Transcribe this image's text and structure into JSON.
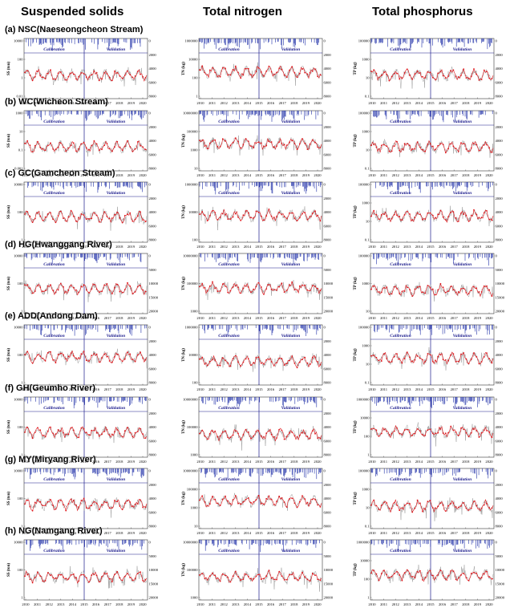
{
  "columns": [
    "Suspended solids",
    "Total nitrogen",
    "Total phosphorus"
  ],
  "rows": [
    "(a) NSC(Naeseongcheon Stream)",
    "(b) WC(Wicheon Stream)",
    "(c) GC(Gamcheon Stream)",
    "(d) HG(Hwanggang River)",
    "(e) ADD(Andong Dam)",
    "(f) GH(Geumho River)",
    "(g) MY(Miryang River)",
    "(h) NG(Namgang River)"
  ],
  "chart_data": {
    "type": "line",
    "layout": "grid of 8 sites x 3 constituents",
    "x_tick_labels": [
      "2010",
      "2011",
      "2012",
      "2013",
      "2014",
      "2015",
      "2016",
      "2017",
      "2018",
      "2019",
      "2020"
    ],
    "phase_labels": [
      "Calibration",
      "Validation"
    ],
    "split_year": "2015",
    "series_colors": {
      "observed": "#e0161b",
      "simulated": "#9a9a9a",
      "precipitation": "#1f2fa8"
    },
    "y_axis_scale": "log",
    "panels": [
      {
        "site": "NSC",
        "column": 0,
        "ylabel": "SS (ton)",
        "yticks": [
          "10000",
          "100",
          "1",
          "0.01"
        ],
        "y2ticks": [
          "0",
          "2000",
          "4000",
          "6000",
          "8000"
        ]
      },
      {
        "site": "NSC",
        "column": 1,
        "ylabel": "TN (kg)",
        "yticks": [
          "1000000",
          "10000",
          "100",
          "1"
        ],
        "y2ticks": [
          "0",
          "2000",
          "4000",
          "6000",
          "8000"
        ]
      },
      {
        "site": "NSC",
        "column": 2,
        "ylabel": "TP (kg)",
        "yticks": [
          "100000",
          "1000",
          "10",
          "0.1"
        ],
        "y2ticks": [
          "0",
          "2000",
          "4000",
          "6000",
          "8000"
        ]
      },
      {
        "site": "WC",
        "column": 0,
        "ylabel": "SS (ton)",
        "yticks": [
          "1000",
          "10",
          "0.1",
          "0.001"
        ],
        "y2ticks": [
          "0",
          "2000",
          "4000",
          "6000",
          "8000"
        ]
      },
      {
        "site": "WC",
        "column": 1,
        "ylabel": "TN (kg)",
        "yticks": [
          "10000000",
          "100000",
          "1000",
          "10"
        ],
        "y2ticks": [
          "0",
          "2000",
          "4000",
          "6000",
          "8000"
        ]
      },
      {
        "site": "WC",
        "column": 2,
        "ylabel": "TP (kg)",
        "yticks": [
          "100000",
          "1000",
          "10",
          "0.1"
        ],
        "y2ticks": [
          "0",
          "2000",
          "4000",
          "6000",
          "8000"
        ]
      },
      {
        "site": "GC",
        "column": 0,
        "ylabel": "SS (ton)",
        "yticks": [
          "10000",
          "100",
          "1"
        ],
        "y2ticks": [
          "0",
          "2000",
          "4000",
          "6000",
          "8000"
        ]
      },
      {
        "site": "GC",
        "column": 1,
        "ylabel": "TN (kg)",
        "yticks": [
          "1000000",
          "10000",
          "100"
        ],
        "y2ticks": [
          "0",
          "2000",
          "4000",
          "6000",
          "8000"
        ]
      },
      {
        "site": "GC",
        "column": 2,
        "ylabel": "TP (kg)",
        "yticks": [
          "100000",
          "1000",
          "10",
          "0.1"
        ],
        "y2ticks": [
          "0",
          "2000",
          "4000",
          "6000",
          "8000"
        ]
      },
      {
        "site": "HG",
        "column": 0,
        "ylabel": "SS (ton)",
        "yticks": [
          "10000",
          "100",
          "1"
        ],
        "y2ticks": [
          "0",
          "5000",
          "10000",
          "15000",
          "20000"
        ]
      },
      {
        "site": "HG",
        "column": 1,
        "ylabel": "TN (kg)",
        "yticks": [
          "10000000",
          "100000",
          "1000"
        ],
        "y2ticks": [
          "0",
          "5000",
          "10000",
          "15000",
          "20000"
        ]
      },
      {
        "site": "HG",
        "column": 2,
        "ylabel": "TP (kg)",
        "yticks": [
          "100000",
          "1000",
          "10"
        ],
        "y2ticks": [
          "0",
          "5000",
          "10000",
          "15000",
          "20000"
        ]
      },
      {
        "site": "ADD",
        "column": 0,
        "ylabel": "SS (ton)",
        "yticks": [
          "10000",
          "100",
          "1"
        ],
        "y2ticks": [
          "0",
          "2000",
          "4000",
          "6000",
          "8000"
        ]
      },
      {
        "site": "ADD",
        "column": 1,
        "ylabel": "TN (kg)",
        "yticks": [
          "1000000",
          "10000",
          "100"
        ],
        "y2ticks": [
          "0",
          "2000",
          "4000",
          "6000",
          "8000"
        ]
      },
      {
        "site": "ADD",
        "column": 2,
        "ylabel": "TP (kg)",
        "yticks": [
          "100000",
          "1000",
          "10",
          "0.1"
        ],
        "y2ticks": [
          "0",
          "2000",
          "4000",
          "6000",
          "8000"
        ]
      },
      {
        "site": "GH",
        "column": 0,
        "ylabel": "SS (ton)",
        "yticks": [
          "10000",
          "100",
          "1"
        ],
        "y2ticks": [
          "0",
          "2000",
          "4000",
          "6000",
          "8000"
        ]
      },
      {
        "site": "GH",
        "column": 1,
        "ylabel": "TN (kg)",
        "yticks": [
          "10000000",
          "100000",
          "1000"
        ],
        "y2ticks": [
          "0",
          "2000",
          "4000",
          "6000",
          "8000"
        ]
      },
      {
        "site": "GH",
        "column": 2,
        "ylabel": "TP (kg)",
        "yticks": [
          "1000000",
          "10000",
          "100",
          "1"
        ],
        "y2ticks": [
          "0",
          "2000",
          "4000",
          "6000",
          "8000"
        ]
      },
      {
        "site": "MY",
        "column": 0,
        "ylabel": "SS (ton)",
        "yticks": [
          "10000",
          "100",
          "1"
        ],
        "y2ticks": [
          "0",
          "2000",
          "4000",
          "6000",
          "8000"
        ]
      },
      {
        "site": "MY",
        "column": 1,
        "ylabel": "TN (kg)",
        "yticks": [
          "10000000",
          "100000",
          "1000",
          "10"
        ],
        "y2ticks": [
          "0",
          "2000",
          "4000",
          "6000",
          "8000"
        ]
      },
      {
        "site": "MY",
        "column": 2,
        "ylabel": "TP (kg)",
        "yticks": [
          "100000",
          "1000",
          "10",
          "0.1"
        ],
        "y2ticks": [
          "0",
          "2000",
          "4000",
          "6000",
          "8000"
        ]
      },
      {
        "site": "NG",
        "column": 0,
        "ylabel": "SS (ton)",
        "yticks": [
          "10000",
          "100",
          "1"
        ],
        "y2ticks": [
          "0",
          "5000",
          "10000",
          "15000",
          "20000"
        ]
      },
      {
        "site": "NG",
        "column": 1,
        "ylabel": "TN (kg)",
        "yticks": [
          "10000000",
          "100000",
          "1000"
        ],
        "y2ticks": [
          "0",
          "5000",
          "10000",
          "15000",
          "20000"
        ]
      },
      {
        "site": "NG",
        "column": 2,
        "ylabel": "TP (kg)",
        "yticks": [
          "1000000",
          "10000",
          "100",
          "1"
        ],
        "y2ticks": [
          "0",
          "5000",
          "10000",
          "15000",
          "20000"
        ]
      }
    ]
  }
}
